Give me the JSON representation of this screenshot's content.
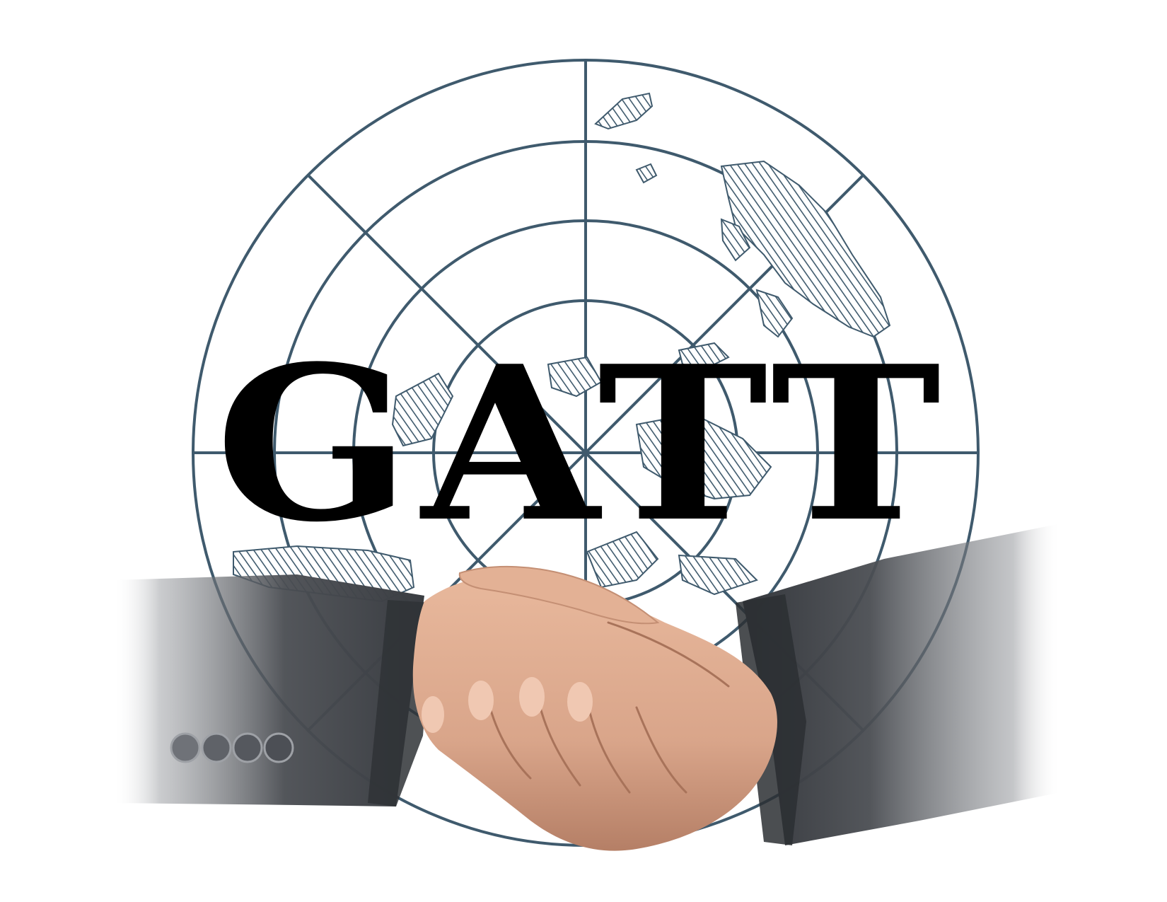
{
  "emblem": {
    "title": "GATT"
  },
  "colors": {
    "globe_line": "#3f5a6d",
    "continent_hatch": "#3f5a6d",
    "title_text": "#000000",
    "suit_dark": "#3a3d42",
    "suit_mid": "#55585e",
    "skin": "#d9a58a",
    "skin_shadow": "#b57f66",
    "background": "#ffffff"
  },
  "icons": {
    "globe": "globe-icon",
    "handshake": "handshake-icon",
    "cuff_buttons": "button-icon"
  },
  "cuff_button_count": 4
}
